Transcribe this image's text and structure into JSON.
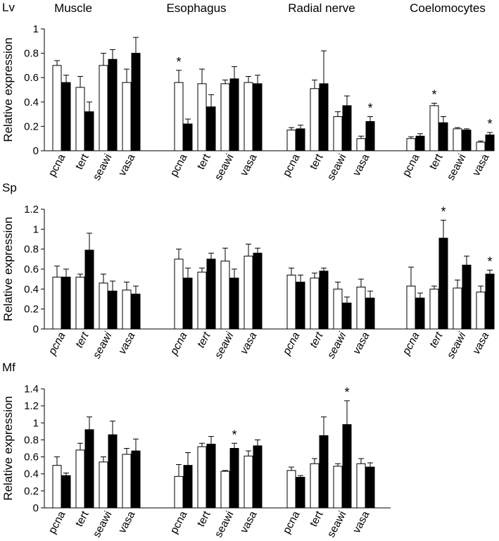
{
  "chart_data": {
    "type": "bar",
    "tissues": [
      "Muscle",
      "Esophagus",
      "Radial nerve",
      "Coelomocytes"
    ],
    "genes": [
      "pcna",
      "tert",
      "seawi",
      "vasa"
    ],
    "ylabel": "Relative expression",
    "series_fills": [
      "#ffffff",
      "#000000"
    ],
    "panels": [
      {
        "species": "Lv",
        "italic": false,
        "ylim": [
          0,
          1
        ],
        "yticks": [
          "0",
          "0.2",
          "0.4",
          "0.6",
          "0.8",
          "1"
        ],
        "groups": [
          {
            "tissue": "Muscle",
            "bars": [
              {
                "gene": "pcna",
                "values": [
                  0.7,
                  0.56
                ],
                "errors": [
                  0.04,
                  0.06
                ],
                "star": ""
              },
              {
                "gene": "tert",
                "values": [
                  0.52,
                  0.32
                ],
                "errors": [
                  0.09,
                  0.08
                ],
                "star": ""
              },
              {
                "gene": "seawi",
                "values": [
                  0.7,
                  0.75
                ],
                "errors": [
                  0.1,
                  0.08
                ],
                "star": ""
              },
              {
                "gene": "vasa",
                "values": [
                  0.56,
                  0.8
                ],
                "errors": [
                  0.11,
                  0.13
                ],
                "star": ""
              }
            ]
          },
          {
            "tissue": "Esophagus",
            "bars": [
              {
                "gene": "pcna",
                "values": [
                  0.56,
                  0.22
                ],
                "errors": [
                  0.1,
                  0.04
                ],
                "star": "*"
              },
              {
                "gene": "tert",
                "values": [
                  0.55,
                  0.36
                ],
                "errors": [
                  0.12,
                  0.1
                ],
                "star": ""
              },
              {
                "gene": "seawi",
                "values": [
                  0.55,
                  0.59
                ],
                "errors": [
                  0.03,
                  0.1
                ],
                "star": ""
              },
              {
                "gene": "vasa",
                "values": [
                  0.56,
                  0.55
                ],
                "errors": [
                  0.05,
                  0.07
                ],
                "star": ""
              }
            ]
          },
          {
            "tissue": "Radial nerve",
            "bars": [
              {
                "gene": "pcna",
                "values": [
                  0.17,
                  0.18
                ],
                "errors": [
                  0.02,
                  0.03
                ],
                "star": ""
              },
              {
                "gene": "tert",
                "values": [
                  0.51,
                  0.55
                ],
                "errors": [
                  0.07,
                  0.27
                ],
                "star": ""
              },
              {
                "gene": "seawi",
                "values": [
                  0.28,
                  0.37
                ],
                "errors": [
                  0.04,
                  0.08
                ],
                "star": ""
              },
              {
                "gene": "vasa",
                "values": [
                  0.1,
                  0.24
                ],
                "errors": [
                  0.02,
                  0.04
                ],
                "star": "*"
              }
            ]
          },
          {
            "tissue": "Coelomocytes",
            "bars": [
              {
                "gene": "pcna",
                "values": [
                  0.1,
                  0.12
                ],
                "errors": [
                  0.015,
                  0.02
                ],
                "star": ""
              },
              {
                "gene": "tert",
                "values": [
                  0.37,
                  0.23
                ],
                "errors": [
                  0.02,
                  0.05
                ],
                "star": "*"
              },
              {
                "gene": "seawi",
                "values": [
                  0.18,
                  0.17
                ],
                "errors": [
                  0.01,
                  0.01
                ],
                "star": ""
              },
              {
                "gene": "vasa",
                "values": [
                  0.07,
                  0.13
                ],
                "errors": [
                  0.01,
                  0.02
                ],
                "star": "*"
              }
            ]
          }
        ]
      },
      {
        "species": "Sp",
        "italic": true,
        "ylim": [
          0,
          1.2
        ],
        "yticks": [
          "0",
          "0.2",
          "0.4",
          "0.6",
          "0.8",
          "1",
          "1.2"
        ],
        "groups": [
          {
            "tissue": "Muscle",
            "bars": [
              {
                "gene": "pcna",
                "values": [
                  0.52,
                  0.52
                ],
                "errors": [
                  0.11,
                  0.08
                ],
                "star": ""
              },
              {
                "gene": "tert",
                "values": [
                  0.52,
                  0.79
                ],
                "errors": [
                  0.03,
                  0.17
                ],
                "star": ""
              },
              {
                "gene": "seawi",
                "values": [
                  0.46,
                  0.38
                ],
                "errors": [
                  0.09,
                  0.1
                ],
                "star": ""
              },
              {
                "gene": "vasa",
                "values": [
                  0.39,
                  0.35
                ],
                "errors": [
                  0.08,
                  0.08
                ],
                "star": ""
              }
            ]
          },
          {
            "tissue": "Esophagus",
            "bars": [
              {
                "gene": "pcna",
                "values": [
                  0.7,
                  0.51
                ],
                "errors": [
                  0.1,
                  0.1
                ],
                "star": ""
              },
              {
                "gene": "tert",
                "values": [
                  0.57,
                  0.7
                ],
                "errors": [
                  0.04,
                  0.06
                ],
                "star": ""
              },
              {
                "gene": "seawi",
                "values": [
                  0.68,
                  0.51
                ],
                "errors": [
                  0.13,
                  0.09
                ],
                "star": ""
              },
              {
                "gene": "vasa",
                "values": [
                  0.73,
                  0.76
                ],
                "errors": [
                  0.12,
                  0.05
                ],
                "star": ""
              }
            ]
          },
          {
            "tissue": "Radial nerve",
            "bars": [
              {
                "gene": "pcna",
                "values": [
                  0.54,
                  0.47
                ],
                "errors": [
                  0.07,
                  0.07
                ],
                "star": ""
              },
              {
                "gene": "tert",
                "values": [
                  0.51,
                  0.58
                ],
                "errors": [
                  0.05,
                  0.03
                ],
                "star": ""
              },
              {
                "gene": "seawi",
                "values": [
                  0.4,
                  0.26
                ],
                "errors": [
                  0.07,
                  0.06
                ],
                "star": ""
              },
              {
                "gene": "vasa",
                "values": [
                  0.42,
                  0.31
                ],
                "errors": [
                  0.08,
                  0.07
                ],
                "star": ""
              }
            ]
          },
          {
            "tissue": "Coelomocytes",
            "bars": [
              {
                "gene": "pcna",
                "values": [
                  0.43,
                  0.31
                ],
                "errors": [
                  0.19,
                  0.05
                ],
                "star": ""
              },
              {
                "gene": "tert",
                "values": [
                  0.4,
                  0.91
                ],
                "errors": [
                  0.03,
                  0.18
                ],
                "star": "*"
              },
              {
                "gene": "seawi",
                "values": [
                  0.41,
                  0.64
                ],
                "errors": [
                  0.08,
                  0.09
                ],
                "star": ""
              },
              {
                "gene": "vasa",
                "values": [
                  0.37,
                  0.55
                ],
                "errors": [
                  0.06,
                  0.04
                ],
                "star": "*"
              }
            ]
          }
        ]
      },
      {
        "species": "Mf",
        "italic": false,
        "ylim": [
          0,
          1.4
        ],
        "yticks": [
          "0",
          "0.2",
          "0.4",
          "0.6",
          "0.8",
          "1",
          "1.2",
          "1.4"
        ],
        "groups": [
          {
            "tissue": "Muscle",
            "bars": [
              {
                "gene": "pcna",
                "values": [
                  0.5,
                  0.38
                ],
                "errors": [
                  0.1,
                  0.03
                ],
                "star": ""
              },
              {
                "gene": "tert",
                "values": [
                  0.68,
                  0.92
                ],
                "errors": [
                  0.08,
                  0.15
                ],
                "star": ""
              },
              {
                "gene": "seawi",
                "values": [
                  0.54,
                  0.86
                ],
                "errors": [
                  0.06,
                  0.16
                ],
                "star": ""
              },
              {
                "gene": "vasa",
                "values": [
                  0.63,
                  0.67
                ],
                "errors": [
                  0.07,
                  0.14
                ],
                "star": ""
              }
            ]
          },
          {
            "tissue": "Esophagus",
            "bars": [
              {
                "gene": "pcna",
                "values": [
                  0.37,
                  0.5
                ],
                "errors": [
                  0.14,
                  0.15
                ],
                "star": ""
              },
              {
                "gene": "tert",
                "values": [
                  0.72,
                  0.75
                ],
                "errors": [
                  0.04,
                  0.09
                ],
                "star": ""
              },
              {
                "gene": "seawi",
                "values": [
                  0.43,
                  0.7
                ],
                "errors": [
                  0.01,
                  0.06
                ],
                "star": "*"
              },
              {
                "gene": "vasa",
                "values": [
                  0.61,
                  0.73
                ],
                "errors": [
                  0.06,
                  0.07
                ],
                "star": ""
              }
            ]
          },
          {
            "tissue": "Radial nerve",
            "bars": [
              {
                "gene": "pcna",
                "values": [
                  0.44,
                  0.36
                ],
                "errors": [
                  0.04,
                  0.02
                ],
                "star": ""
              },
              {
                "gene": "tert",
                "values": [
                  0.52,
                  0.85
                ],
                "errors": [
                  0.06,
                  0.22
                ],
                "star": ""
              },
              {
                "gene": "seawi",
                "values": [
                  0.49,
                  0.98
                ],
                "errors": [
                  0.03,
                  0.28
                ],
                "star": "*"
              },
              {
                "gene": "vasa",
                "values": [
                  0.52,
                  0.48
                ],
                "errors": [
                  0.06,
                  0.05
                ],
                "star": ""
              }
            ]
          }
        ]
      }
    ]
  }
}
